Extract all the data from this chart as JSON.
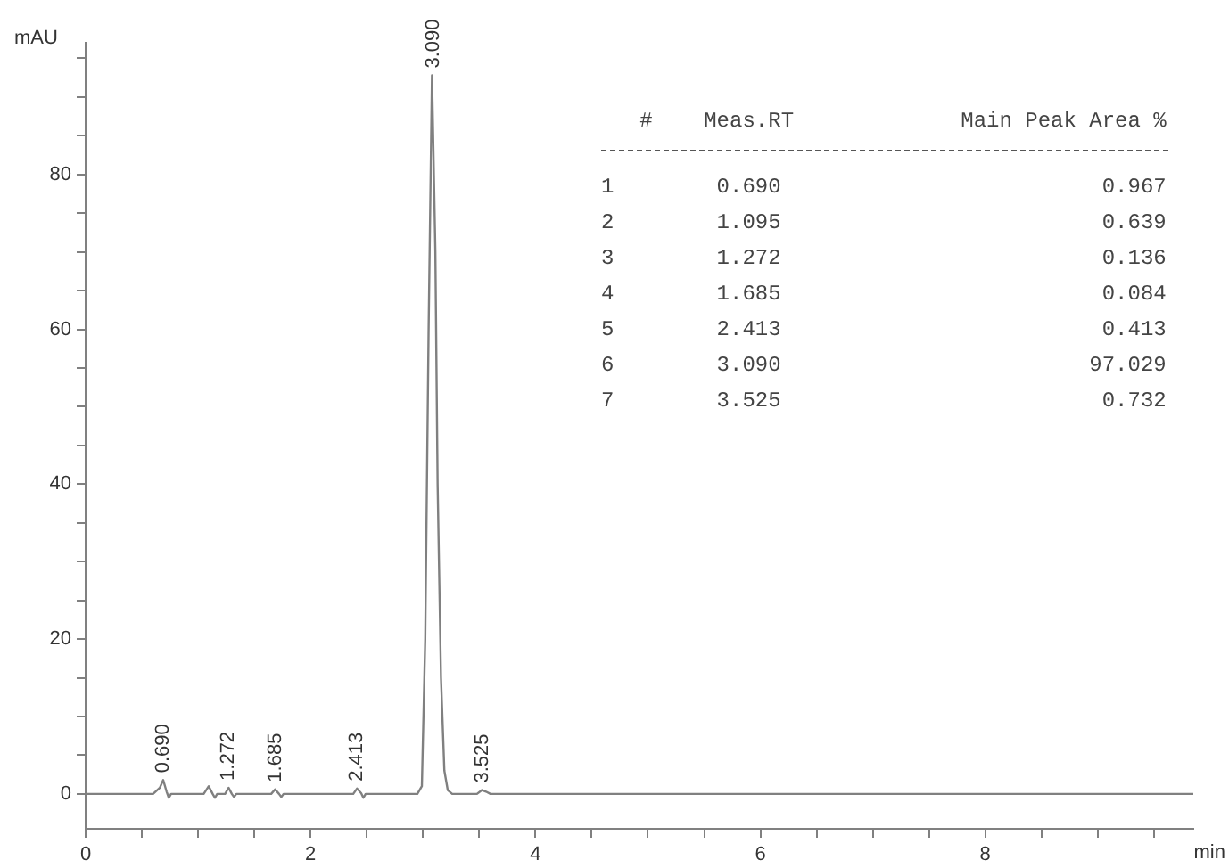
{
  "chart_data": {
    "type": "line",
    "ylabel": "mAU",
    "xlabel": "min",
    "marker": "none",
    "x": [
      0,
      0.6,
      0.66,
      0.69,
      0.72,
      0.74,
      0.76,
      1.05,
      1.095,
      1.13,
      1.15,
      1.17,
      1.24,
      1.272,
      1.3,
      1.32,
      1.34,
      1.65,
      1.685,
      1.72,
      1.74,
      1.76,
      2.38,
      2.413,
      2.45,
      2.47,
      2.49,
      2.95,
      2.99,
      3.02,
      3.05,
      3.08,
      3.09,
      3.11,
      3.13,
      3.16,
      3.19,
      3.22,
      3.26,
      3.48,
      3.525,
      3.56,
      3.6,
      9.85
    ],
    "series": [
      {
        "color": "#808080",
        "values": [
          0,
          0,
          0.8,
          1.8,
          0.3,
          -0.5,
          0,
          0,
          1,
          0,
          -0.5,
          0,
          0,
          0.8,
          0,
          -0.4,
          0,
          0,
          0.6,
          0,
          -0.4,
          0,
          0,
          0.7,
          0.1,
          -0.5,
          0,
          0,
          1,
          20,
          60,
          92.8,
          92.8,
          70,
          40,
          15,
          3,
          0.5,
          0,
          0,
          0.5,
          0.3,
          0,
          0
        ]
      }
    ],
    "xlim": [
      0,
      9.85
    ],
    "ylim": [
      -4.5,
      97
    ],
    "xticks": [
      0,
      {
        "value": 0.5,
        "label": null
      },
      {
        "value": 1,
        "label": null
      },
      {
        "value": 1.5,
        "label": null
      },
      2,
      {
        "value": 2.5,
        "label": null
      },
      {
        "value": 3,
        "label": null
      },
      {
        "value": 3.5,
        "label": null
      },
      4,
      {
        "value": 4.5,
        "label": null
      },
      {
        "value": 5,
        "label": null
      },
      {
        "value": 5.5,
        "label": null
      },
      6,
      {
        "value": 6.5,
        "label": null
      },
      {
        "value": 7,
        "label": null
      },
      {
        "value": 7.5,
        "label": null
      },
      8,
      {
        "value": 8.5,
        "label": null
      },
      {
        "value": 9,
        "label": null
      },
      {
        "value": 9.5,
        "label": null
      }
    ],
    "yticks": [
      0,
      {
        "value": 5,
        "label": null
      },
      {
        "value": 10,
        "label": null
      },
      {
        "value": 15,
        "label": null
      },
      20,
      {
        "value": 25,
        "label": null
      },
      {
        "value": 30,
        "label": null
      },
      {
        "value": 35,
        "label": null
      },
      40,
      {
        "value": 45,
        "label": null
      },
      {
        "value": 50,
        "label": null
      },
      {
        "value": 55,
        "label": null
      },
      60,
      {
        "value": 65,
        "label": null
      },
      {
        "value": 70,
        "label": null
      },
      {
        "value": 75,
        "label": null
      },
      80,
      {
        "value": 85,
        "label": null
      },
      {
        "value": 90,
        "label": null
      },
      {
        "value": 95,
        "label": null
      }
    ],
    "annotations": [
      {
        "text": "0.690",
        "x": 0.69,
        "y": 1.8
      },
      {
        "text": "1.272",
        "x": 1.272,
        "y": 0.8
      },
      {
        "text": "1.685",
        "x": 1.685,
        "y": 0.6
      },
      {
        "text": "2.413",
        "x": 2.413,
        "y": 0.7
      },
      {
        "text": "3.090",
        "x": 3.09,
        "y": 92.8
      },
      {
        "text": "3.525",
        "x": 3.525,
        "y": 0.5
      },
      "   #    Meas.RT             Main Peak Area %",
      "1        0.690                         0.967",
      "2        1.095                         0.639",
      "3        1.272                         0.136",
      "4        1.685                         0.084",
      "5        2.413                         0.413",
      "6        3.090                        97.029",
      "7        3.525                         0.732"
    ]
  }
}
